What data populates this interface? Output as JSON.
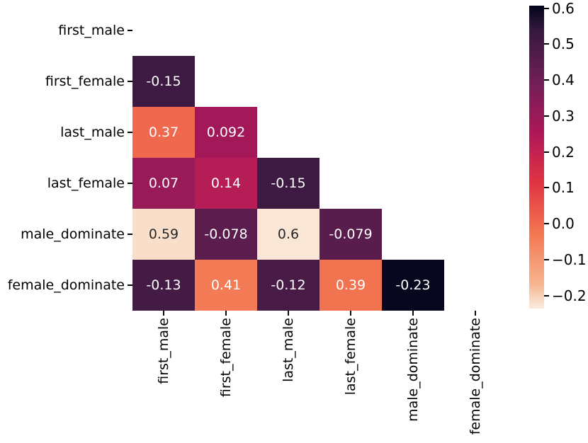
{
  "chart_data": {
    "type": "heatmap",
    "title": "",
    "xlabel": "",
    "ylabel": "",
    "variables": [
      "first_male",
      "first_female",
      "last_male",
      "last_female",
      "male_dominate",
      "female_dominate"
    ],
    "mask": "upper-triangle-and-diagonal-hidden",
    "cells": [
      {
        "row": 1,
        "col": 0,
        "value": -0.15,
        "label": "-0.15"
      },
      {
        "row": 2,
        "col": 0,
        "value": 0.37,
        "label": "0.37"
      },
      {
        "row": 2,
        "col": 1,
        "value": 0.092,
        "label": "0.092"
      },
      {
        "row": 3,
        "col": 0,
        "value": 0.07,
        "label": "0.07"
      },
      {
        "row": 3,
        "col": 1,
        "value": 0.14,
        "label": "0.14"
      },
      {
        "row": 3,
        "col": 2,
        "value": -0.15,
        "label": "-0.15"
      },
      {
        "row": 4,
        "col": 0,
        "value": 0.59,
        "label": "0.59"
      },
      {
        "row": 4,
        "col": 1,
        "value": -0.078,
        "label": "-0.078"
      },
      {
        "row": 4,
        "col": 2,
        "value": 0.6,
        "label": "0.6"
      },
      {
        "row": 4,
        "col": 3,
        "value": -0.079,
        "label": "-0.079"
      },
      {
        "row": 5,
        "col": 0,
        "value": -0.13,
        "label": "-0.13"
      },
      {
        "row": 5,
        "col": 1,
        "value": 0.41,
        "label": "0.41"
      },
      {
        "row": 5,
        "col": 2,
        "value": -0.12,
        "label": "-0.12"
      },
      {
        "row": 5,
        "col": 3,
        "value": 0.39,
        "label": "0.39"
      },
      {
        "row": 5,
        "col": 4,
        "value": -0.23,
        "label": "-0.23"
      }
    ],
    "colormap": {
      "name": "rocket",
      "vmin": -0.236,
      "vmax": 0.607,
      "anchors": [
        {
          "t": 0,
          "color": "#03051A"
        },
        {
          "t": 0.0833,
          "color": "#35193E"
        },
        {
          "t": 0.25,
          "color": "#701F57"
        },
        {
          "t": 0.4167,
          "color": "#AD1759"
        },
        {
          "t": 0.5833,
          "color": "#E13342"
        },
        {
          "t": 0.75,
          "color": "#F37651"
        },
        {
          "t": 0.9167,
          "color": "#F6B48F"
        },
        {
          "t": 1,
          "color": "#FAEBDD"
        }
      ]
    },
    "colorbar": {
      "position": "right",
      "ticks": [
        {
          "value": 0.6,
          "label": "0.6"
        },
        {
          "value": 0.5,
          "label": "0.5"
        },
        {
          "value": 0.4,
          "label": "0.4"
        },
        {
          "value": 0.3,
          "label": "0.3"
        },
        {
          "value": 0.2,
          "label": "0.2"
        },
        {
          "value": 0.1,
          "label": "0.1"
        },
        {
          "value": 0.0,
          "label": "0.0"
        },
        {
          "value": -0.1,
          "label": "−0.1"
        },
        {
          "value": -0.2,
          "label": "−0.2"
        }
      ]
    },
    "annotation_text_colors": {
      "on_light": "#262626",
      "on_dark": "#ffffff"
    },
    "axis_text_color": "#000000",
    "background_color": "#ffffff",
    "grid": false,
    "legend": false
  }
}
